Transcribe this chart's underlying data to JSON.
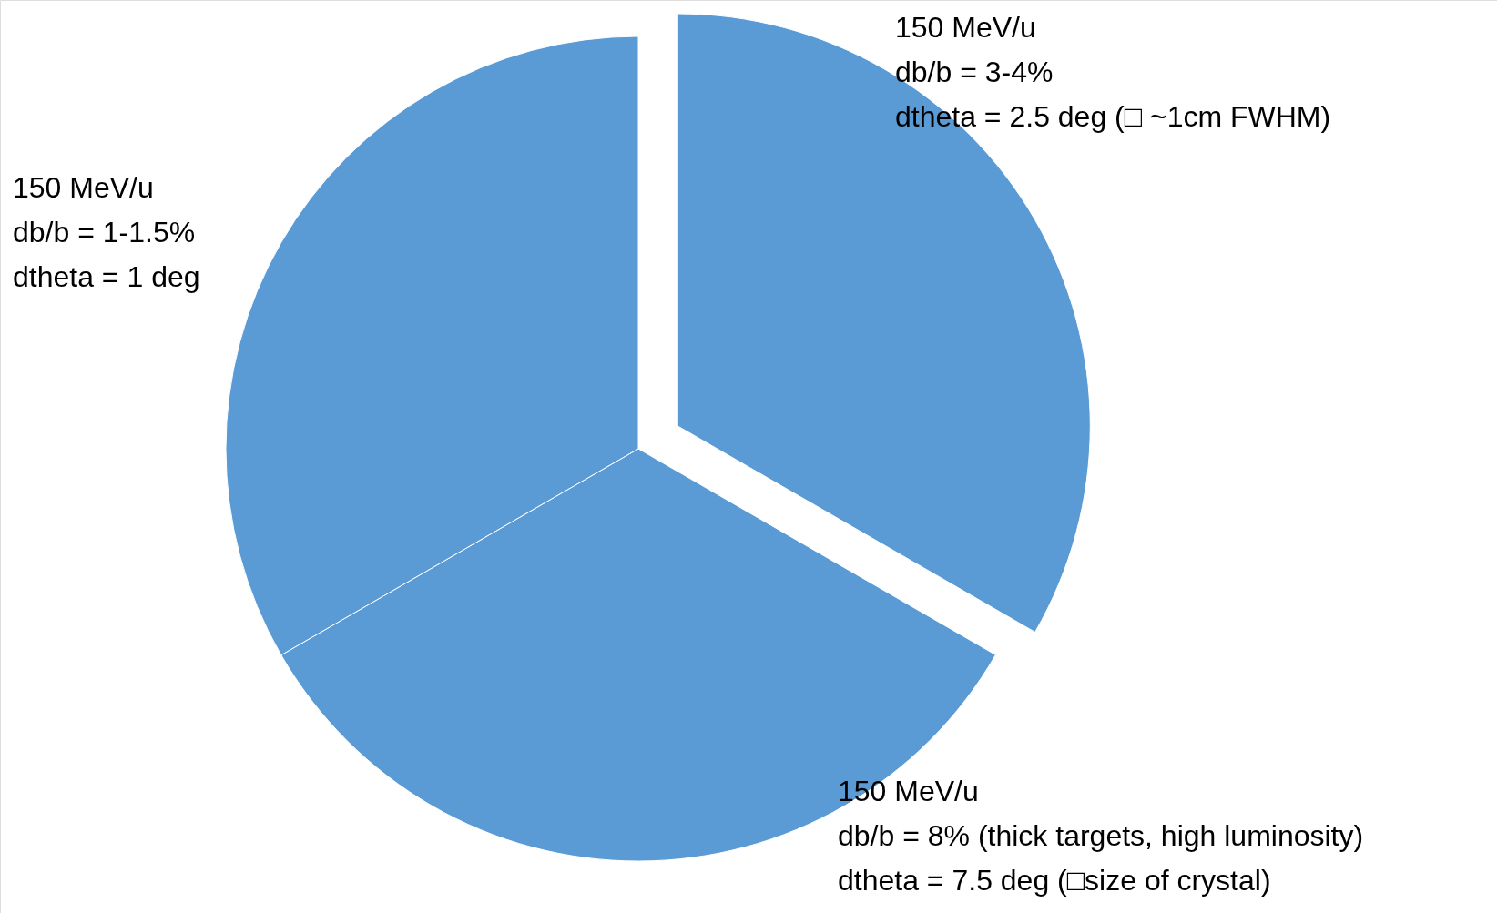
{
  "chart_data": {
    "type": "pie",
    "categories": [
      null,
      null,
      null
    ],
    "values": [
      33.33,
      33.33,
      33.34
    ],
    "colors": [
      "#5b9bd5",
      "#5b9bd5",
      "#5b9bd5"
    ],
    "annotations": [
      "150 MeV/u\ndb/b = 3-4%\ndtheta = 2.5 deg (□ ~1cm FWHM)",
      "150 MeV/u\ndb/b = 8% (thick targets, high luminosity)\ndtheta = 7.5 deg (□size of crystal)",
      "150 MeV/u\ndb/b = 1-1.5%\ndtheta = 1 deg"
    ]
  }
}
